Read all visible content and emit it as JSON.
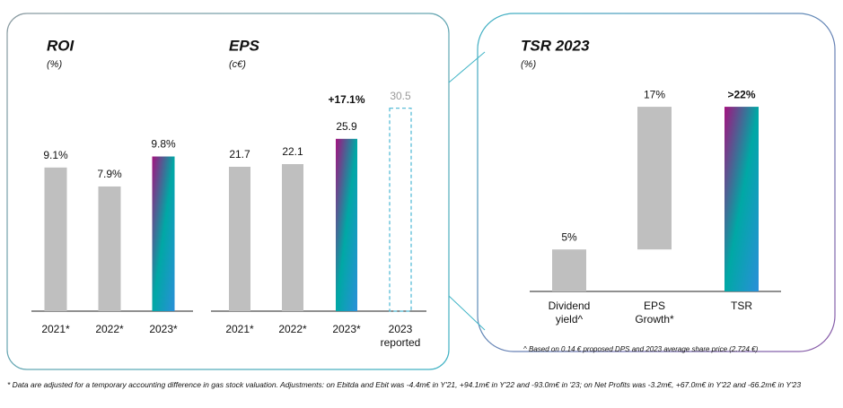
{
  "chart_data": [
    {
      "type": "bar",
      "title": "ROI",
      "subtitle": "(%)",
      "categories": [
        "2021*",
        "2022*",
        "2023*"
      ],
      "values": [
        9.1,
        7.9,
        9.8
      ],
      "value_labels": [
        "9.1%",
        "7.9%",
        "9.8%"
      ],
      "colors": [
        "#bfbfbf",
        "#bfbfbf",
        [
          "#a3127f",
          "#00a8a5",
          "#2a8fd9"
        ]
      ]
    },
    {
      "type": "bar",
      "title": "EPS",
      "subtitle": "(c€)",
      "categories": [
        "2021*",
        "2022*",
        "2023*",
        "2023 reported"
      ],
      "values": [
        21.7,
        22.1,
        25.9,
        30.5
      ],
      "colors": [
        "#bfbfbf",
        "#bfbfbf",
        [
          "#a3127f",
          "#00a8a5",
          "#2a8fd9"
        ],
        {
          "stroke": "#4bb7d4",
          "dashed": true
        }
      ],
      "annotation": "+17.1%"
    },
    {
      "type": "waterfall",
      "title": "TSR 2023",
      "subtitle": "(%)",
      "categories": [
        "Dividend yield^",
        "EPS Growth*",
        "TSR"
      ],
      "values": [
        5,
        17,
        22
      ],
      "value_labels": [
        "5%",
        "17%",
        ">22%"
      ],
      "colors": [
        "#bfbfbf",
        "#bfbfbf",
        [
          "#a3127f",
          "#00a8a5",
          "#2a8fd9"
        ]
      ],
      "note": "^ Based on 0.14 € proposed DPS and 2023 average share price (2.724 €)"
    }
  ],
  "footnote": "* Data are adjusted for a temporary accounting difference in gas stock valuation. Adjustments: on Ebitda and Ebit was -4.4m€ in Y'21, +94.1m€ in Y'22 and -93.0m€ in '23; on Net Profits was -3.2m€, +67.0m€ in Y'22 and -66.2m€ in Y'23"
}
